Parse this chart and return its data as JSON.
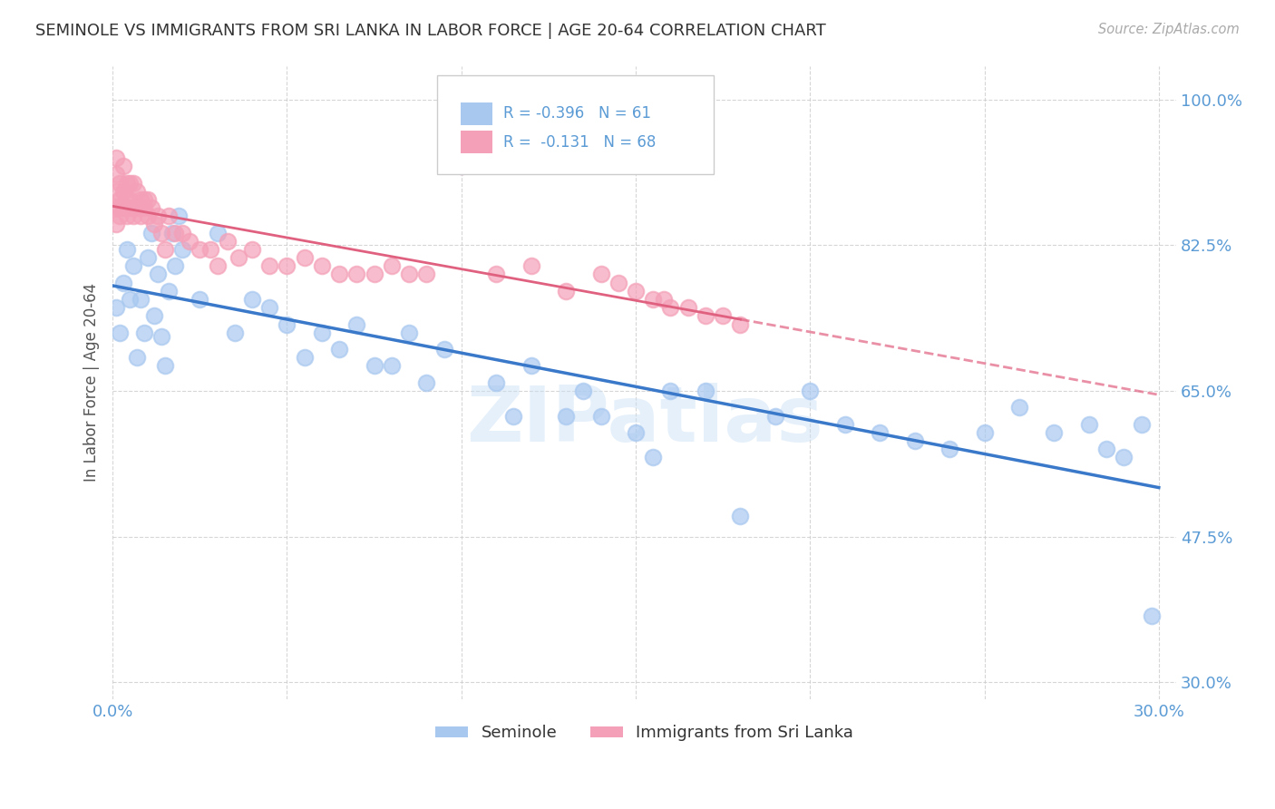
{
  "title": "SEMINOLE VS IMMIGRANTS FROM SRI LANKA IN LABOR FORCE | AGE 20-64 CORRELATION CHART",
  "source": "Source: ZipAtlas.com",
  "ylabel": "In Labor Force | Age 20-64",
  "xlim": [
    0.0,
    0.305
  ],
  "ylim": [
    0.28,
    1.04
  ],
  "xticks": [
    0.0,
    0.05,
    0.1,
    0.15,
    0.2,
    0.25,
    0.3
  ],
  "xticklabels": [
    "0.0%",
    "",
    "",
    "",
    "",
    "",
    "30.0%"
  ],
  "yticks": [
    0.3,
    0.475,
    0.65,
    0.825,
    1.0
  ],
  "yticklabels": [
    "30.0%",
    "47.5%",
    "65.0%",
    "82.5%",
    "100.0%"
  ],
  "legend_r_blue": "-0.396",
  "legend_n_blue": "61",
  "legend_r_pink": "-0.131",
  "legend_n_pink": "68",
  "blue_scatter_color": "#a8c8f0",
  "pink_scatter_color": "#f4a0b8",
  "blue_line_color": "#3a78c9",
  "pink_line_color": "#e06080",
  "axis_color": "#5b9bd5",
  "text_color": "#333333",
  "grid_color": "#cccccc",
  "background_color": "#ffffff",
  "watermark": "ZIPatlas",
  "seminole_label": "Seminole",
  "srilanka_label": "Immigrants from Sri Lanka",
  "blue_x": [
    0.001,
    0.002,
    0.003,
    0.004,
    0.005,
    0.006,
    0.007,
    0.008,
    0.009,
    0.01,
    0.011,
    0.012,
    0.013,
    0.014,
    0.015,
    0.016,
    0.017,
    0.018,
    0.019,
    0.02,
    0.025,
    0.03,
    0.035,
    0.04,
    0.045,
    0.05,
    0.055,
    0.06,
    0.065,
    0.07,
    0.075,
    0.08,
    0.085,
    0.09,
    0.095,
    0.1,
    0.11,
    0.115,
    0.12,
    0.13,
    0.135,
    0.14,
    0.15,
    0.155,
    0.16,
    0.17,
    0.18,
    0.19,
    0.2,
    0.21,
    0.22,
    0.23,
    0.24,
    0.25,
    0.26,
    0.27,
    0.28,
    0.285,
    0.29,
    0.295,
    0.298
  ],
  "blue_y": [
    0.75,
    0.72,
    0.78,
    0.82,
    0.76,
    0.8,
    0.69,
    0.76,
    0.72,
    0.81,
    0.84,
    0.74,
    0.79,
    0.715,
    0.68,
    0.77,
    0.84,
    0.8,
    0.86,
    0.82,
    0.76,
    0.84,
    0.72,
    0.76,
    0.75,
    0.73,
    0.69,
    0.72,
    0.7,
    0.73,
    0.68,
    0.68,
    0.72,
    0.66,
    0.7,
    0.92,
    0.66,
    0.62,
    0.68,
    0.62,
    0.65,
    0.62,
    0.6,
    0.57,
    0.65,
    0.65,
    0.5,
    0.62,
    0.65,
    0.61,
    0.6,
    0.59,
    0.58,
    0.6,
    0.63,
    0.6,
    0.61,
    0.58,
    0.57,
    0.61,
    0.38
  ],
  "pink_x": [
    0.001,
    0.001,
    0.001,
    0.001,
    0.001,
    0.002,
    0.002,
    0.002,
    0.002,
    0.003,
    0.003,
    0.003,
    0.004,
    0.004,
    0.004,
    0.005,
    0.005,
    0.005,
    0.006,
    0.006,
    0.006,
    0.007,
    0.007,
    0.008,
    0.008,
    0.009,
    0.009,
    0.01,
    0.01,
    0.011,
    0.012,
    0.013,
    0.014,
    0.015,
    0.016,
    0.018,
    0.02,
    0.022,
    0.025,
    0.028,
    0.03,
    0.033,
    0.036,
    0.04,
    0.045,
    0.05,
    0.055,
    0.06,
    0.065,
    0.07,
    0.075,
    0.08,
    0.085,
    0.09,
    0.1,
    0.11,
    0.12,
    0.13,
    0.14,
    0.145,
    0.15,
    0.155,
    0.158,
    0.16,
    0.165,
    0.17,
    0.175,
    0.18
  ],
  "pink_y": [
    0.87,
    0.89,
    0.91,
    0.93,
    0.85,
    0.88,
    0.9,
    0.87,
    0.86,
    0.92,
    0.89,
    0.87,
    0.9,
    0.88,
    0.86,
    0.9,
    0.88,
    0.87,
    0.9,
    0.87,
    0.86,
    0.89,
    0.87,
    0.88,
    0.86,
    0.88,
    0.87,
    0.88,
    0.86,
    0.87,
    0.85,
    0.86,
    0.84,
    0.82,
    0.86,
    0.84,
    0.84,
    0.83,
    0.82,
    0.82,
    0.8,
    0.83,
    0.81,
    0.82,
    0.8,
    0.8,
    0.81,
    0.8,
    0.79,
    0.79,
    0.79,
    0.8,
    0.79,
    0.79,
    0.92,
    0.79,
    0.8,
    0.77,
    0.79,
    0.78,
    0.77,
    0.76,
    0.76,
    0.75,
    0.75,
    0.74,
    0.74,
    0.73
  ]
}
